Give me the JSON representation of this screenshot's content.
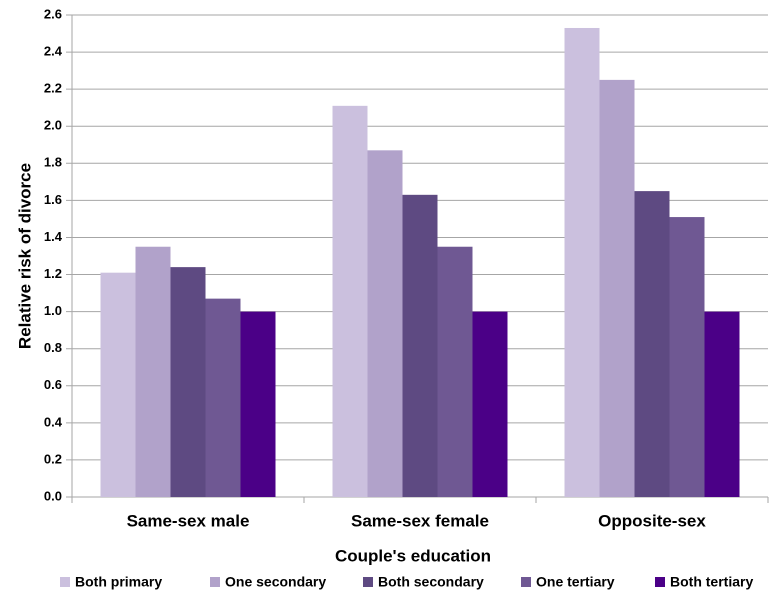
{
  "chart_data": {
    "type": "bar",
    "x_label": "Couple's education",
    "y_label": "Relative risk of divorce",
    "categories": [
      "Same-sex male",
      "Same-sex female",
      "Opposite-sex"
    ],
    "series": [
      {
        "name": "Both primary",
        "color": "#cbc0de",
        "values": [
          1.21,
          2.11,
          2.53
        ]
      },
      {
        "name": "One secondary",
        "color": "#b1a2ca",
        "values": [
          1.35,
          1.87,
          2.25
        ]
      },
      {
        "name": "Both secondary",
        "color": "#5e4a82",
        "values": [
          1.24,
          1.63,
          1.65
        ]
      },
      {
        "name": "One tertiary",
        "color": "#6f5893",
        "values": [
          1.07,
          1.35,
          1.51
        ]
      },
      {
        "name": "Both tertiary",
        "color": "#4b0087",
        "values": [
          1.0,
          1.0,
          1.0
        ]
      }
    ],
    "ylim": [
      0,
      2.6
    ],
    "yticks": [
      {
        "value": 0,
        "label": "0.0"
      },
      0.2,
      0.4,
      0.6,
      0.8,
      {
        "value": 1,
        "label": "1.0"
      },
      1.2,
      1.4,
      1.6,
      1.8,
      {
        "value": 2,
        "label": "2.0"
      },
      2.2,
      2.4,
      2.6
    ],
    "grid": true
  }
}
